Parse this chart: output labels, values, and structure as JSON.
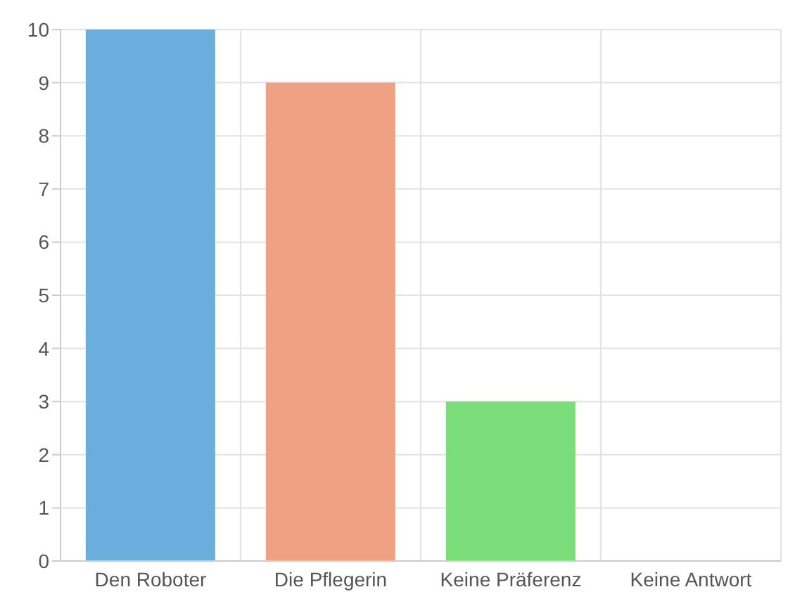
{
  "chart_data": {
    "type": "bar",
    "categories": [
      "Den Roboter",
      "Die Pflegerin",
      "Keine Präferenz",
      "Keine Antwort"
    ],
    "values": [
      10,
      9,
      3,
      0
    ],
    "colors": [
      "#6aaedd",
      "#f0a083",
      "#7bde7b",
      "#c9a0dc"
    ],
    "ylim": [
      0,
      10
    ],
    "yticks": [
      0,
      1,
      2,
      3,
      4,
      5,
      6,
      7,
      8,
      9,
      10
    ],
    "grid": true
  }
}
